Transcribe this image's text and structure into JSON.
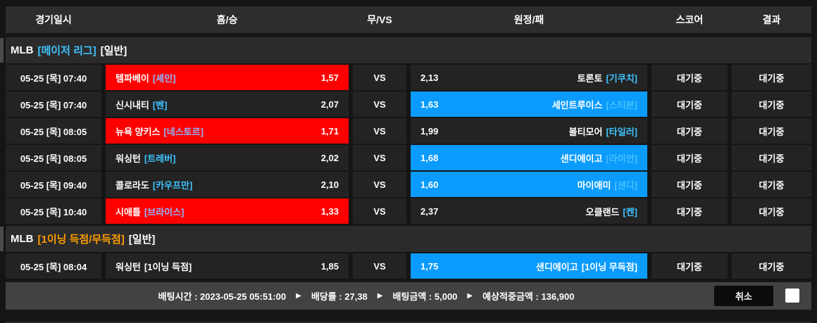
{
  "columns": [
    "경기일시",
    "홈/승",
    "무/VS",
    "원정/패",
    "스코어",
    "결과"
  ],
  "sections": [
    {
      "league": "MLB",
      "category": "[메이저 리그]",
      "category_color": "#3ec3ff",
      "game_type": "[일반]",
      "rows": [
        {
          "date": "05-25 [목] 07:40",
          "home": {
            "team": "템파베이",
            "tag": "[셰인]",
            "odds": "1,57"
          },
          "vs": "VS",
          "away": {
            "odds": "2,13",
            "team": "토론토",
            "tag": "[기쿠치]"
          },
          "score": "대기중",
          "result": "대기중",
          "selected": "home"
        },
        {
          "date": "05-25 [목] 07:40",
          "home": {
            "team": "신시내티",
            "tag": "[벤]",
            "odds": "2,07"
          },
          "vs": "VS",
          "away": {
            "odds": "1,63",
            "team": "세인트루이스",
            "tag": "[스티븐]"
          },
          "score": "대기중",
          "result": "대기중",
          "selected": "away"
        },
        {
          "date": "05-25 [목] 08:05",
          "home": {
            "team": "뉴욕 양키스",
            "tag": "[네스토르]",
            "odds": "1,71"
          },
          "vs": "VS",
          "away": {
            "odds": "1,99",
            "team": "볼티모어",
            "tag": "[타일러]"
          },
          "score": "대기중",
          "result": "대기중",
          "selected": "home"
        },
        {
          "date": "05-25 [목] 08:05",
          "home": {
            "team": "워싱턴",
            "tag": "[트레버]",
            "odds": "2,02"
          },
          "vs": "VS",
          "away": {
            "odds": "1,68",
            "team": "샌디에이고",
            "tag": "[라이언]"
          },
          "score": "대기중",
          "result": "대기중",
          "selected": "away"
        },
        {
          "date": "05-25 [목] 09:40",
          "home": {
            "team": "콜로라도",
            "tag": "[카우프만]",
            "odds": "2,10"
          },
          "vs": "VS",
          "away": {
            "odds": "1,60",
            "team": "마이애미",
            "tag": "[샌디]"
          },
          "score": "대기중",
          "result": "대기중",
          "selected": "away"
        },
        {
          "date": "05-25 [목] 10:40",
          "home": {
            "team": "시애틀",
            "tag": "[브라이스]",
            "odds": "1,33"
          },
          "vs": "VS",
          "away": {
            "odds": "2,37",
            "team": "오클랜드",
            "tag": "[켄]"
          },
          "score": "대기중",
          "result": "대기중",
          "selected": "home"
        }
      ]
    },
    {
      "league": "MLB",
      "category": "[1이닝 득점/무득점]",
      "category_color": "#ff9c00",
      "game_type": "[일반]",
      "rows": [
        {
          "date": "05-25 [목] 08:04",
          "home": {
            "team": "워싱턴",
            "tag": "[1이닝 득점]",
            "tag_plain": true,
            "odds": "1,85"
          },
          "vs": "VS",
          "away": {
            "odds": "1,75",
            "team": "샌디에이고",
            "tag": "[1이닝 무득점]",
            "tag_plain": true
          },
          "score": "대기중",
          "result": "대기중",
          "selected": "away"
        }
      ]
    }
  ],
  "footer": {
    "items": [
      "배팅시간 : 2023-05-25 05:51:00",
      "배당률 : 27,38",
      "배팅금액 : 5,000",
      "예상적중금액 : 136,900"
    ],
    "separator": "▶",
    "cancel_label": "취소"
  },
  "colors": {
    "selected_home": "#ff0000",
    "selected_away": "#0a9bfc",
    "category_cyan": "#3ec3ff",
    "category_orange": "#ff9c00",
    "pitcher_cyan": "#3ec3ff",
    "header_bg": "#2d2d2d",
    "cell_bg": "#232323",
    "footer_bg": "#424242"
  }
}
